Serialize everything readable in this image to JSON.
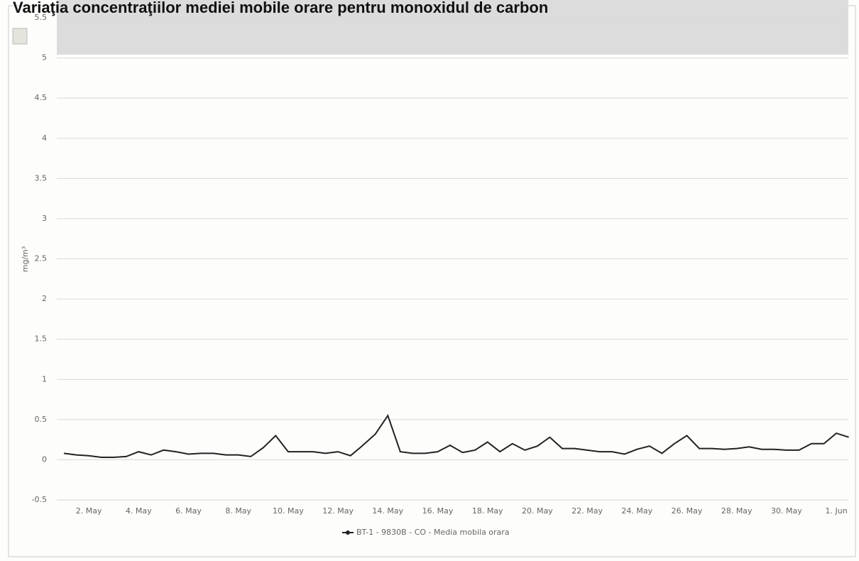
{
  "chart_data": {
    "type": "line",
    "title": "Variaţia concentraţiilor mediei mobile orare pentru monoxidul de carbon",
    "y_label": "mg/m³",
    "categories": [
      null,
      null,
      "2. May",
      null,
      null,
      null,
      "4. May",
      null,
      null,
      null,
      "6. May",
      null,
      null,
      null,
      "8. May",
      null,
      null,
      null,
      "10. May",
      null,
      null,
      null,
      "12. May",
      null,
      null,
      null,
      "14. May",
      null,
      null,
      null,
      "16. May",
      null,
      null,
      null,
      "18. May",
      null,
      null,
      null,
      "20. May",
      null,
      null,
      null,
      "22. May",
      null,
      null,
      null,
      "24. May",
      null,
      null,
      null,
      "26. May",
      null,
      null,
      null,
      "28. May",
      null,
      null,
      null,
      "30. May",
      null,
      null,
      null,
      "1. Jun",
      null
    ],
    "series": [
      {
        "name": "BT-1 - 9830B - CO - Media mobila orara",
        "color": "#222222",
        "values": [
          0.08,
          0.06,
          0.05,
          0.03,
          0.03,
          0.04,
          0.1,
          0.06,
          0.12,
          0.1,
          0.07,
          0.08,
          0.08,
          0.06,
          0.06,
          0.04,
          0.15,
          0.3,
          0.1,
          0.1,
          0.1,
          0.08,
          0.1,
          0.05,
          0.18,
          0.32,
          0.55,
          0.1,
          0.08,
          0.08,
          0.1,
          0.18,
          0.09,
          0.12,
          0.22,
          0.1,
          0.2,
          0.12,
          0.17,
          0.28,
          0.14,
          0.14,
          0.12,
          0.1,
          0.1,
          0.07,
          0.13,
          0.17,
          0.08,
          0.2,
          0.3,
          0.14,
          0.14,
          0.13,
          0.14,
          0.16,
          0.13,
          0.13,
          0.12,
          0.12,
          0.2,
          0.2,
          0.33,
          0.28
        ]
      }
    ],
    "ylim": [
      -0.5,
      5.5
    ],
    "yticks": [
      -0.5,
      0,
      0.5,
      1,
      1.5,
      2,
      2.5,
      3,
      3.5,
      4,
      4.5,
      5,
      5.5
    ],
    "grid": true
  }
}
